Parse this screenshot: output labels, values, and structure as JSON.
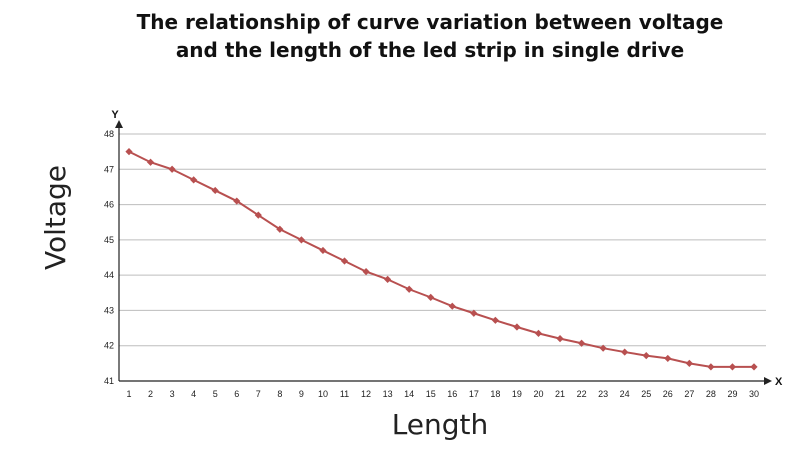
{
  "chart_data": {
    "type": "line",
    "title_line1": "The relationship of curve variation between voltage",
    "title_line2": "and the length of the led strip in single drive",
    "xlabel": "Length",
    "ylabel": "Voltage",
    "x_axis_name": "X",
    "y_axis_name": "Y",
    "x": [
      1,
      2,
      3,
      4,
      5,
      6,
      7,
      8,
      9,
      10,
      11,
      12,
      13,
      14,
      15,
      16,
      17,
      18,
      19,
      20,
      21,
      22,
      23,
      24,
      25,
      26,
      27,
      28,
      29,
      30
    ],
    "y": [
      47.5,
      47.2,
      47.0,
      46.7,
      46.4,
      46.1,
      45.7,
      45.3,
      45.0,
      44.7,
      44.4,
      44.1,
      43.88,
      43.6,
      43.37,
      43.12,
      42.92,
      42.72,
      42.53,
      42.35,
      42.2,
      42.07,
      41.93,
      41.82,
      41.72,
      41.64,
      41.5,
      41.4,
      41.4,
      41.4
    ],
    "ylim": [
      41,
      48
    ],
    "yticks": [
      41,
      42,
      43,
      44,
      45,
      46,
      47,
      48
    ],
    "grid": true,
    "line_color": "#b85050",
    "marker": "diamond"
  }
}
